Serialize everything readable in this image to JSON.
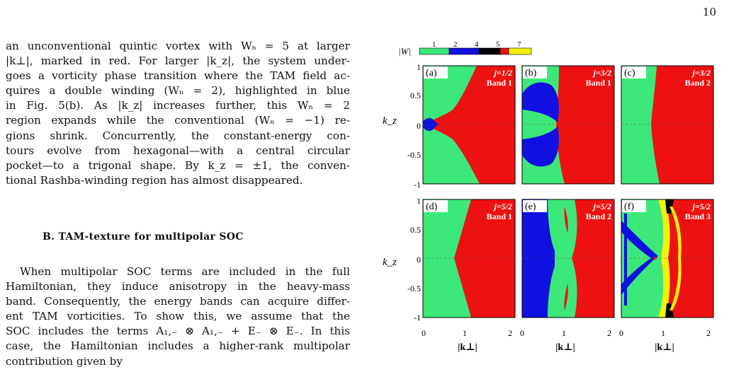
{
  "page_number": "10",
  "para1_lines": [
    "an unconventional quintic vortex with Wₙ = 5 at larger",
    "|k⊥|, marked in red. For larger |k_z|, the system under-",
    "goes a vorticity phase transition where the TAM field ac-",
    "quires a double winding (Wₙ = 2), highlighted in blue",
    "in Fig. 5(b).  As |k_z| increases further, this Wₙ = 2",
    "region expands while the conventional (Wₙ = −1) re-",
    "gions shrink.  Concurrently, the constant-energy con-",
    "tours evolve from hexagonal—with a central circular",
    "pocket—to a trigonal shape.  By k_z = ±1, the conven-",
    "tional Rashba-winding region has almost disappeared."
  ],
  "section_heading": "B.   TAM-texture for multipolar SOC",
  "para2_lines": [
    "When multipolar SOC terms are included in the full",
    "Hamiltonian, they induce anisotropy in the heavy-mass",
    "band. Consequently, the energy bands can acquire differ-",
    "ent TAM vorticities. To show this, we assume that the",
    "SOC includes the terms A₁,₋ ⊗ A₁,₋ + E₋ ⊗ E₋. In this",
    "case, the Hamiltonian includes a higher-rank multipolar",
    "contribution given by"
  ],
  "figure": {
    "colorbar": {
      "label": "|W|",
      "ticks": [
        "1",
        "2",
        "4",
        "5",
        "7"
      ],
      "colors": [
        "#3de87a",
        "#1010e0",
        "#000000",
        "#ee1111",
        "#f2f20a"
      ]
    },
    "y_axis_label": "k_z",
    "x_axis_label": "|k⊥|",
    "y_ticks": [
      "1",
      "0.5",
      "0",
      "-0.5",
      "-1"
    ],
    "x_ticks": [
      "0",
      "1",
      "2"
    ],
    "panels": [
      {
        "tag": "(a)",
        "j": "j=1/2",
        "band": "Band 1"
      },
      {
        "tag": "(b)",
        "j": "j=3/2",
        "band": "Band 1"
      },
      {
        "tag": "(c)",
        "j": "j=3/2",
        "band": "Band 2"
      },
      {
        "tag": "(d)",
        "j": "j=5/2",
        "band": "Band 1"
      },
      {
        "tag": "(e)",
        "j": "j=5/2",
        "band": "Band 2"
      },
      {
        "tag": "(f)",
        "j": "j=5/2",
        "band": "Band 3"
      }
    ]
  }
}
